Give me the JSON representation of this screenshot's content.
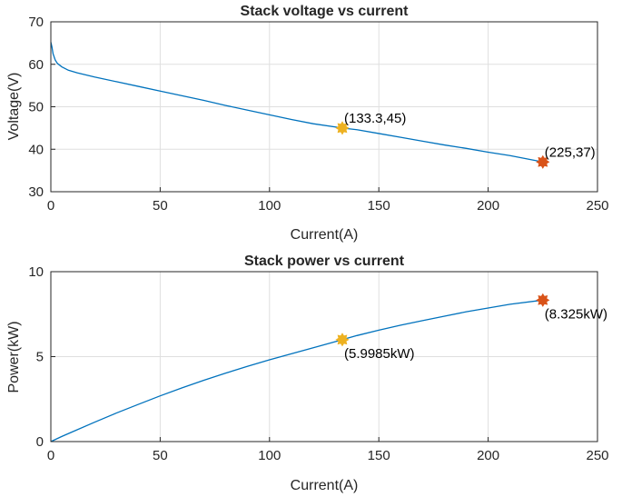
{
  "chart_data": [
    {
      "type": "line",
      "title": "Stack voltage vs current",
      "xlabel": "Current(A)",
      "ylabel": "Voltage(V)",
      "xlim": [
        0,
        250
      ],
      "ylim": [
        30,
        70
      ],
      "xticks": [
        0,
        50,
        100,
        150,
        200,
        250
      ],
      "yticks": [
        30,
        40,
        50,
        60,
        70
      ],
      "grid": true,
      "series": [
        {
          "color": "#0072BD",
          "x": [
            0,
            0.5,
            1,
            2,
            3,
            5,
            8,
            12,
            20,
            30,
            40,
            50,
            60,
            70,
            80,
            90,
            100,
            110,
            120,
            133.3,
            140,
            150,
            160,
            170,
            180,
            190,
            200,
            210,
            225
          ],
          "y": [
            65.2,
            64.1,
            62.5,
            61.0,
            60.2,
            59.4,
            58.6,
            58.0,
            57.0,
            55.9,
            54.8,
            53.7,
            52.6,
            51.5,
            50.3,
            49.2,
            48.1,
            47.0,
            46.0,
            45.0,
            44.6,
            43.7,
            42.8,
            41.9,
            41.0,
            40.2,
            39.3,
            38.5,
            37.0
          ]
        }
      ],
      "points": [
        {
          "x": 133.3,
          "y": 45,
          "label": "(133.3,45)",
          "color": "#EDB120"
        },
        {
          "x": 225,
          "y": 37,
          "label": "(225,37)",
          "color": "#D95319"
        }
      ]
    },
    {
      "type": "line",
      "title": "Stack power vs current",
      "xlabel": "Current(A)",
      "ylabel": "Power(kW)",
      "xlim": [
        0,
        250
      ],
      "ylim": [
        0,
        10
      ],
      "xticks": [
        0,
        50,
        100,
        150,
        200,
        250
      ],
      "yticks": [
        0,
        5,
        10
      ],
      "grid": true,
      "series": [
        {
          "color": "#0072BD",
          "x": [
            0,
            2,
            5,
            10,
            20,
            30,
            40,
            50,
            60,
            70,
            80,
            90,
            100,
            110,
            120,
            133.3,
            140,
            150,
            160,
            170,
            180,
            190,
            200,
            210,
            225
          ],
          "y": [
            0,
            0.12,
            0.3,
            0.58,
            1.14,
            1.68,
            2.19,
            2.69,
            3.16,
            3.61,
            4.03,
            4.43,
            4.81,
            5.17,
            5.52,
            5.9985,
            6.24,
            6.56,
            6.85,
            7.12,
            7.38,
            7.64,
            7.86,
            8.08,
            8.325
          ]
        }
      ],
      "points": [
        {
          "x": 133.3,
          "y": 5.9985,
          "label": "(5.9985kW)",
          "color": "#EDB120"
        },
        {
          "x": 225,
          "y": 8.325,
          "label": "(8.325kW)",
          "color": "#D95319"
        }
      ]
    }
  ]
}
